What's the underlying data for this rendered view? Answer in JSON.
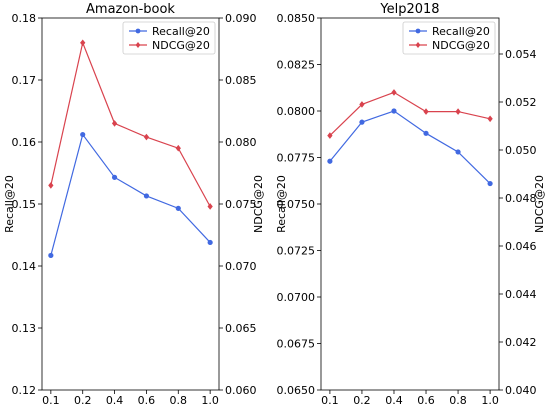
{
  "chart_data": [
    {
      "type": "line",
      "title": "Amazon-book",
      "xlabel": "",
      "ylabel": "Recall@20",
      "ylabel_right": "NDCG@20",
      "categories": [
        "0.1",
        "0.2",
        "0.4",
        "0.6",
        "0.8",
        "1.0"
      ],
      "ylim": [
        0.12,
        0.18
      ],
      "y_ticks": [
        "0.12",
        "0.13",
        "0.14",
        "0.15",
        "0.16",
        "0.17",
        "0.18"
      ],
      "ylim_right": [
        0.06,
        0.09
      ],
      "y_ticks_right": [
        "0.060",
        "0.065",
        "0.070",
        "0.075",
        "0.080",
        "0.085",
        "0.090"
      ],
      "legend_position": "top-right",
      "grid": false,
      "series": [
        {
          "name": "Recall@20",
          "axis": "left",
          "color": "#4169e1",
          "marker": "circle",
          "values": [
            0.1417,
            0.1612,
            0.1543,
            0.1513,
            0.1493,
            0.1438
          ]
        },
        {
          "name": "NDCG@20",
          "axis": "right",
          "color": "#d9434e",
          "marker": "diamond",
          "values": [
            0.0765,
            0.088,
            0.0815,
            0.0804,
            0.0795,
            0.0748
          ]
        }
      ]
    },
    {
      "type": "line",
      "title": "Yelp2018",
      "xlabel": "",
      "ylabel": "Recall@20",
      "ylabel_right": "NDCG@20",
      "categories": [
        "0.1",
        "0.2",
        "0.4",
        "0.6",
        "0.8",
        "1.0"
      ],
      "ylim": [
        0.065,
        0.085
      ],
      "y_ticks": [
        "0.0650",
        "0.0675",
        "0.0700",
        "0.0725",
        "0.0750",
        "0.0775",
        "0.0800",
        "0.0825",
        "0.0850"
      ],
      "ylim_right": [
        0.04,
        0.0555
      ],
      "y_ticks_right": [
        "0.040",
        "0.042",
        "0.044",
        "0.046",
        "0.048",
        "0.050",
        "0.052",
        "0.054"
      ],
      "legend_position": "top-right",
      "grid": false,
      "series": [
        {
          "name": "Recall@20",
          "axis": "left",
          "color": "#4169e1",
          "marker": "circle",
          "values": [
            0.0773,
            0.0794,
            0.08,
            0.0788,
            0.0778,
            0.0761
          ]
        },
        {
          "name": "NDCG@20",
          "axis": "right",
          "color": "#d9434e",
          "marker": "diamond",
          "values": [
            0.0506,
            0.0519,
            0.0524,
            0.0516,
            0.0516,
            0.0513
          ]
        }
      ]
    }
  ]
}
